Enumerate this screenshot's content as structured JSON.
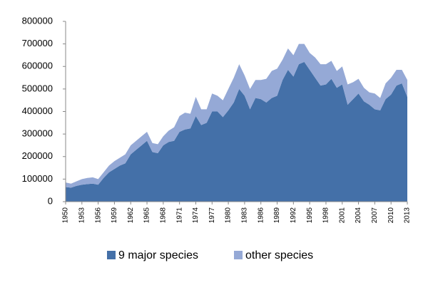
{
  "chart_data": {
    "type": "stacked_area",
    "x": [
      1950,
      1951,
      1952,
      1953,
      1954,
      1955,
      1956,
      1957,
      1958,
      1959,
      1960,
      1961,
      1962,
      1963,
      1964,
      1965,
      1966,
      1967,
      1968,
      1969,
      1970,
      1971,
      1972,
      1973,
      1974,
      1975,
      1976,
      1977,
      1978,
      1979,
      1980,
      1981,
      1982,
      1983,
      1984,
      1985,
      1986,
      1987,
      1988,
      1989,
      1990,
      1991,
      1992,
      1993,
      1994,
      1995,
      1996,
      1997,
      1998,
      1999,
      2000,
      2001,
      2002,
      2003,
      2004,
      2005,
      2006,
      2007,
      2008,
      2009,
      2010,
      2011,
      2012,
      2013
    ],
    "xlim": [
      1950,
      2013
    ],
    "xticks": [
      1950,
      1953,
      1956,
      1959,
      1962,
      1965,
      1968,
      1971,
      1974,
      1977,
      1980,
      1983,
      1986,
      1989,
      1992,
      1995,
      1998,
      2001,
      2004,
      2007,
      2010,
      2013
    ],
    "ylim": [
      0,
      800000
    ],
    "yticks": [
      0,
      100000,
      200000,
      300000,
      400000,
      500000,
      600000,
      700000,
      800000
    ],
    "grid": false,
    "legend": "bottom",
    "series": [
      {
        "name": "9 major species",
        "color": "#4470a8",
        "values": [
          65000,
          62000,
          70000,
          75000,
          78000,
          80000,
          75000,
          105000,
          130000,
          145000,
          160000,
          170000,
          210000,
          230000,
          250000,
          270000,
          220000,
          215000,
          250000,
          265000,
          270000,
          310000,
          320000,
          325000,
          380000,
          340000,
          350000,
          400000,
          400000,
          375000,
          405000,
          440000,
          500000,
          470000,
          410000,
          460000,
          455000,
          440000,
          460000,
          470000,
          540000,
          585000,
          555000,
          610000,
          620000,
          585000,
          550000,
          515000,
          520000,
          545000,
          505000,
          520000,
          430000,
          455000,
          480000,
          445000,
          430000,
          410000,
          405000,
          455000,
          475000,
          515000,
          525000,
          465000
        ]
      },
      {
        "name": "other species",
        "color": "#95a9d6",
        "values": [
          20000,
          18000,
          20000,
          25000,
          27000,
          28000,
          25000,
          25000,
          30000,
          35000,
          35000,
          40000,
          40000,
          40000,
          40000,
          40000,
          40000,
          40000,
          40000,
          50000,
          60000,
          70000,
          75000,
          65000,
          85000,
          70000,
          60000,
          80000,
          70000,
          75000,
          95000,
          110000,
          110000,
          90000,
          90000,
          80000,
          85000,
          105000,
          120000,
          120000,
          90000,
          95000,
          95000,
          90000,
          80000,
          75000,
          90000,
          95000,
          90000,
          80000,
          75000,
          80000,
          90000,
          75000,
          65000,
          60000,
          55000,
          70000,
          55000,
          70000,
          75000,
          70000,
          60000,
          75000
        ]
      }
    ]
  }
}
